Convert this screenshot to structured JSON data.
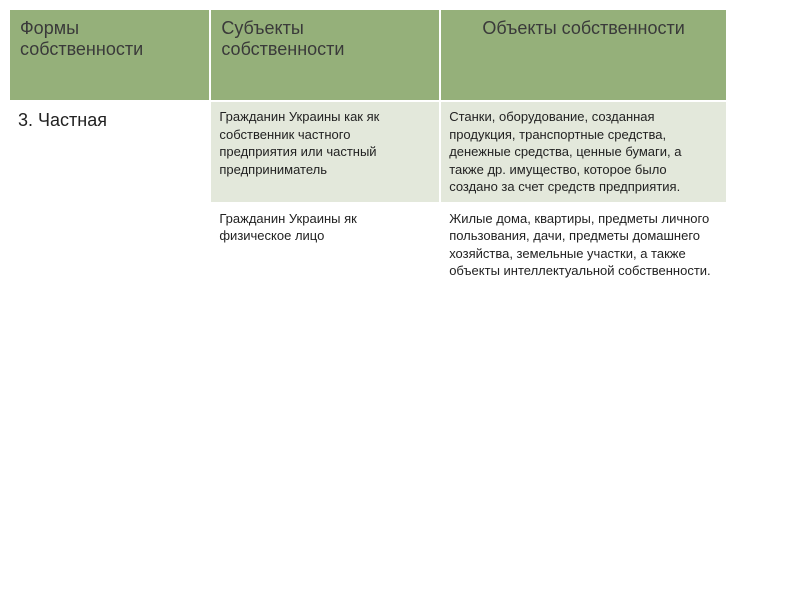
{
  "table": {
    "headers": {
      "col1": "Формы собственности",
      "col2": "Субъекты собственности",
      "col3": "Объекты собственности"
    },
    "rows": [
      {
        "form": "3. Частная",
        "subject": "Гражданин Украины как як собственник частного предприятия или частный предприниматель",
        "object": "Станки, оборудование, созданная продукция, транспортные средства, денежные средства, ценные бумаги, а также др. имущество, которое было создано за счет средств предприятия."
      },
      {
        "form": "",
        "subject": "Гражданин  Украины як физическое  лицо",
        "object": "Жилые дома, квартиры, предметы личного пользования, дачи, предметы домашнего хозяйства, земельные участки, а также объекты интеллектуальной собственности."
      }
    ],
    "colors": {
      "header_bg": "#95b07a",
      "light_bg": "#e3e8db",
      "white_bg": "#ffffff",
      "text": "#222222"
    },
    "fonts": {
      "header_size": 18,
      "cell_size": 13,
      "form_label_size": 18
    }
  }
}
